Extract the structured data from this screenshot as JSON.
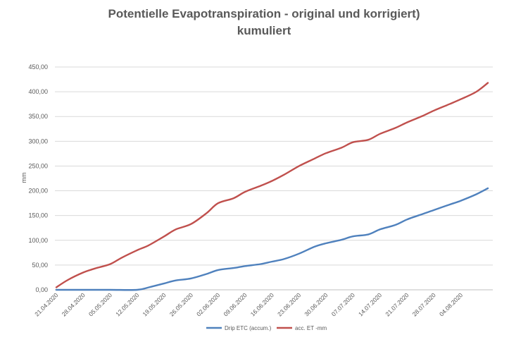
{
  "chart_data": {
    "type": "line",
    "title_line1": "Potentielle Evapotranspiration - original und korrigiert)",
    "title_line2": "kumuliert",
    "xlabel": "",
    "ylabel": "mm",
    "ylim": [
      0,
      450
    ],
    "y_ticks": [
      "0,00",
      "50,00",
      "100,00",
      "150,00",
      "200,00",
      "250,00",
      "300,00",
      "350,00",
      "400,00",
      "450,00"
    ],
    "x_tick_labels": [
      "21.04.2020",
      "28.04.2020",
      "05.05.2020",
      "12.05.2020",
      "19.05.2020",
      "26.05.2020",
      "02.06.2020",
      "09.06.2020",
      "16.06.2020",
      "23.06.2020",
      "30.06.2020",
      "07.07.2020",
      "14.07.2020",
      "21.07.2020",
      "28.07.2020",
      "04.08.2020"
    ],
    "grid": true,
    "legend_position": "bottom",
    "series": [
      {
        "name": "Drip ETC (accum.)",
        "color": "#4F81BD",
        "points": [
          [
            "21.04.2020",
            0
          ],
          [
            "28.04.2020",
            0
          ],
          [
            "05.05.2020",
            0
          ],
          [
            "12.05.2020",
            0
          ],
          [
            "15.05.2020",
            5
          ],
          [
            "19.05.2020",
            13
          ],
          [
            "22.05.2020",
            19
          ],
          [
            "26.05.2020",
            23
          ],
          [
            "30.05.2020",
            32
          ],
          [
            "02.06.2020",
            40
          ],
          [
            "06.06.2020",
            44
          ],
          [
            "09.06.2020",
            48
          ],
          [
            "13.06.2020",
            52
          ],
          [
            "16.06.2020",
            57
          ],
          [
            "19.06.2020",
            62
          ],
          [
            "23.06.2020",
            73
          ],
          [
            "27.06.2020",
            87
          ],
          [
            "30.06.2020",
            94
          ],
          [
            "04.07.2020",
            101
          ],
          [
            "07.07.2020",
            108
          ],
          [
            "11.07.2020",
            112
          ],
          [
            "14.07.2020",
            122
          ],
          [
            "18.07.2020",
            131
          ],
          [
            "21.07.2020",
            142
          ],
          [
            "25.07.2020",
            153
          ],
          [
            "28.07.2020",
            161
          ],
          [
            "01.08.2020",
            172
          ],
          [
            "04.08.2020",
            180
          ],
          [
            "08.08.2020",
            193
          ],
          [
            "11.08.2020",
            205
          ]
        ]
      },
      {
        "name": "acc. ET -mm",
        "color": "#C0504D",
        "points": [
          [
            "21.04.2020",
            5
          ],
          [
            "24.04.2020",
            20
          ],
          [
            "28.04.2020",
            35
          ],
          [
            "01.05.2020",
            43
          ],
          [
            "05.05.2020",
            52
          ],
          [
            "08.05.2020",
            65
          ],
          [
            "12.05.2020",
            80
          ],
          [
            "15.05.2020",
            90
          ],
          [
            "19.05.2020",
            108
          ],
          [
            "22.05.2020",
            122
          ],
          [
            "26.05.2020",
            133
          ],
          [
            "30.05.2020",
            155
          ],
          [
            "02.06.2020",
            175
          ],
          [
            "06.06.2020",
            185
          ],
          [
            "09.06.2020",
            198
          ],
          [
            "13.06.2020",
            210
          ],
          [
            "16.06.2020",
            220
          ],
          [
            "19.06.2020",
            232
          ],
          [
            "23.06.2020",
            250
          ],
          [
            "27.06.2020",
            265
          ],
          [
            "30.06.2020",
            276
          ],
          [
            "04.07.2020",
            287
          ],
          [
            "07.07.2020",
            298
          ],
          [
            "11.07.2020",
            303
          ],
          [
            "14.07.2020",
            315
          ],
          [
            "18.07.2020",
            327
          ],
          [
            "21.07.2020",
            338
          ],
          [
            "25.07.2020",
            351
          ],
          [
            "28.07.2020",
            362
          ],
          [
            "01.08.2020",
            375
          ],
          [
            "04.08.2020",
            385
          ],
          [
            "08.08.2020",
            400
          ],
          [
            "11.08.2020",
            418
          ]
        ]
      }
    ]
  }
}
